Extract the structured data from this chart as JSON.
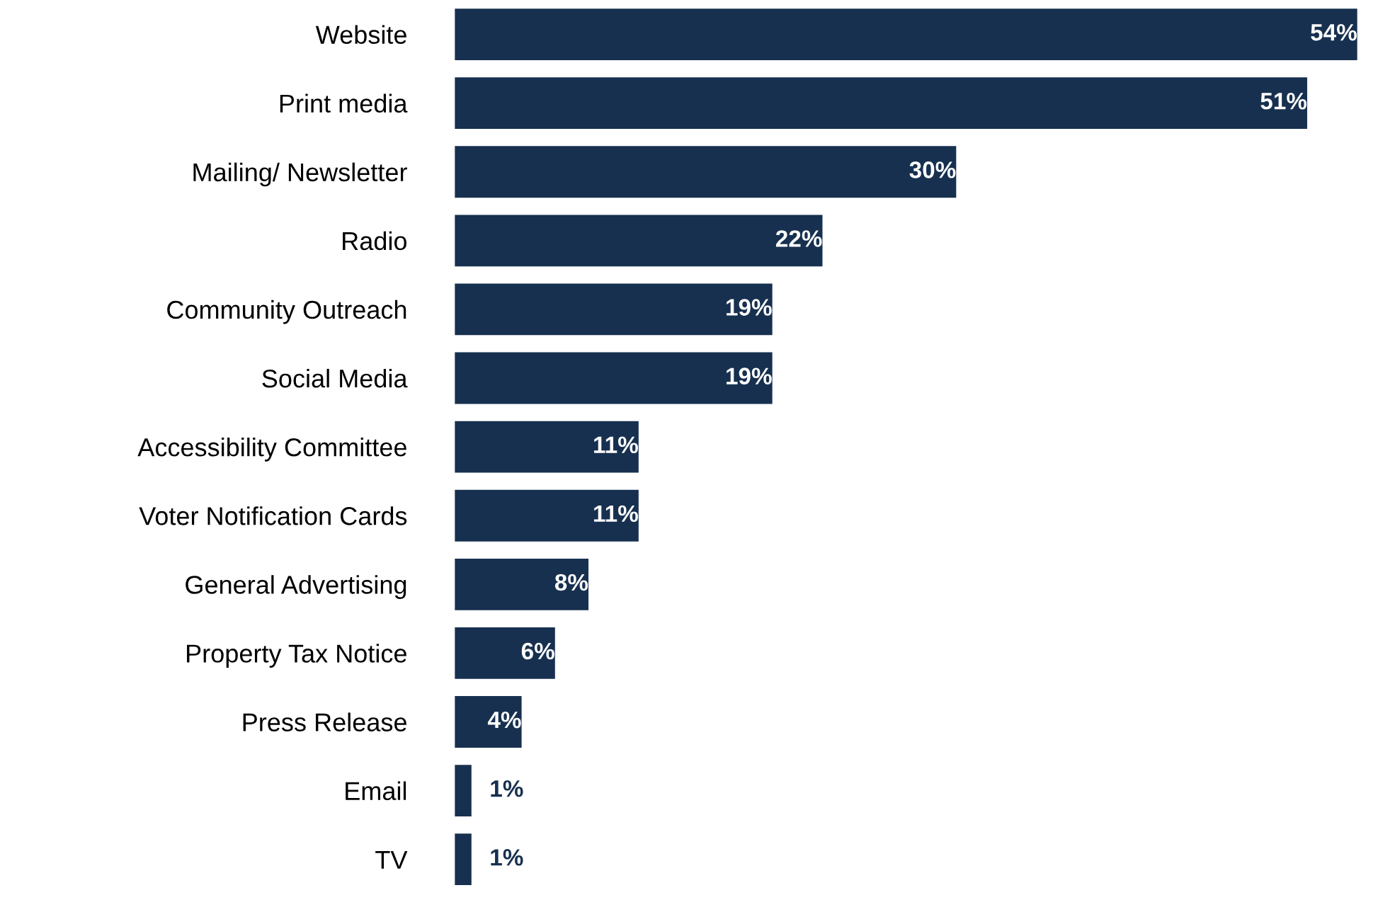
{
  "chart_data": {
    "type": "bar",
    "orientation": "horizontal",
    "tick_labels": "y",
    "grid": false,
    "legend": false,
    "categories": [
      "Website",
      "Print media",
      "Mailing/ Newsletter",
      "Radio",
      "Community Outreach",
      "Social Media",
      "Accessibility Committee",
      "Voter Notification Cards",
      "General Advertising",
      "Property Tax Notice",
      "Press Release",
      "Email",
      "TV"
    ],
    "values": [
      54,
      51,
      30,
      22,
      19,
      19,
      11,
      11,
      8,
      6,
      4,
      1,
      1
    ],
    "value_labels": [
      "54%",
      "51%",
      "30%",
      "22%",
      "19%",
      "19%",
      "11%",
      "11%",
      "8%",
      "6%",
      "4%",
      "1%",
      "1%"
    ],
    "color": "#17304f"
  }
}
